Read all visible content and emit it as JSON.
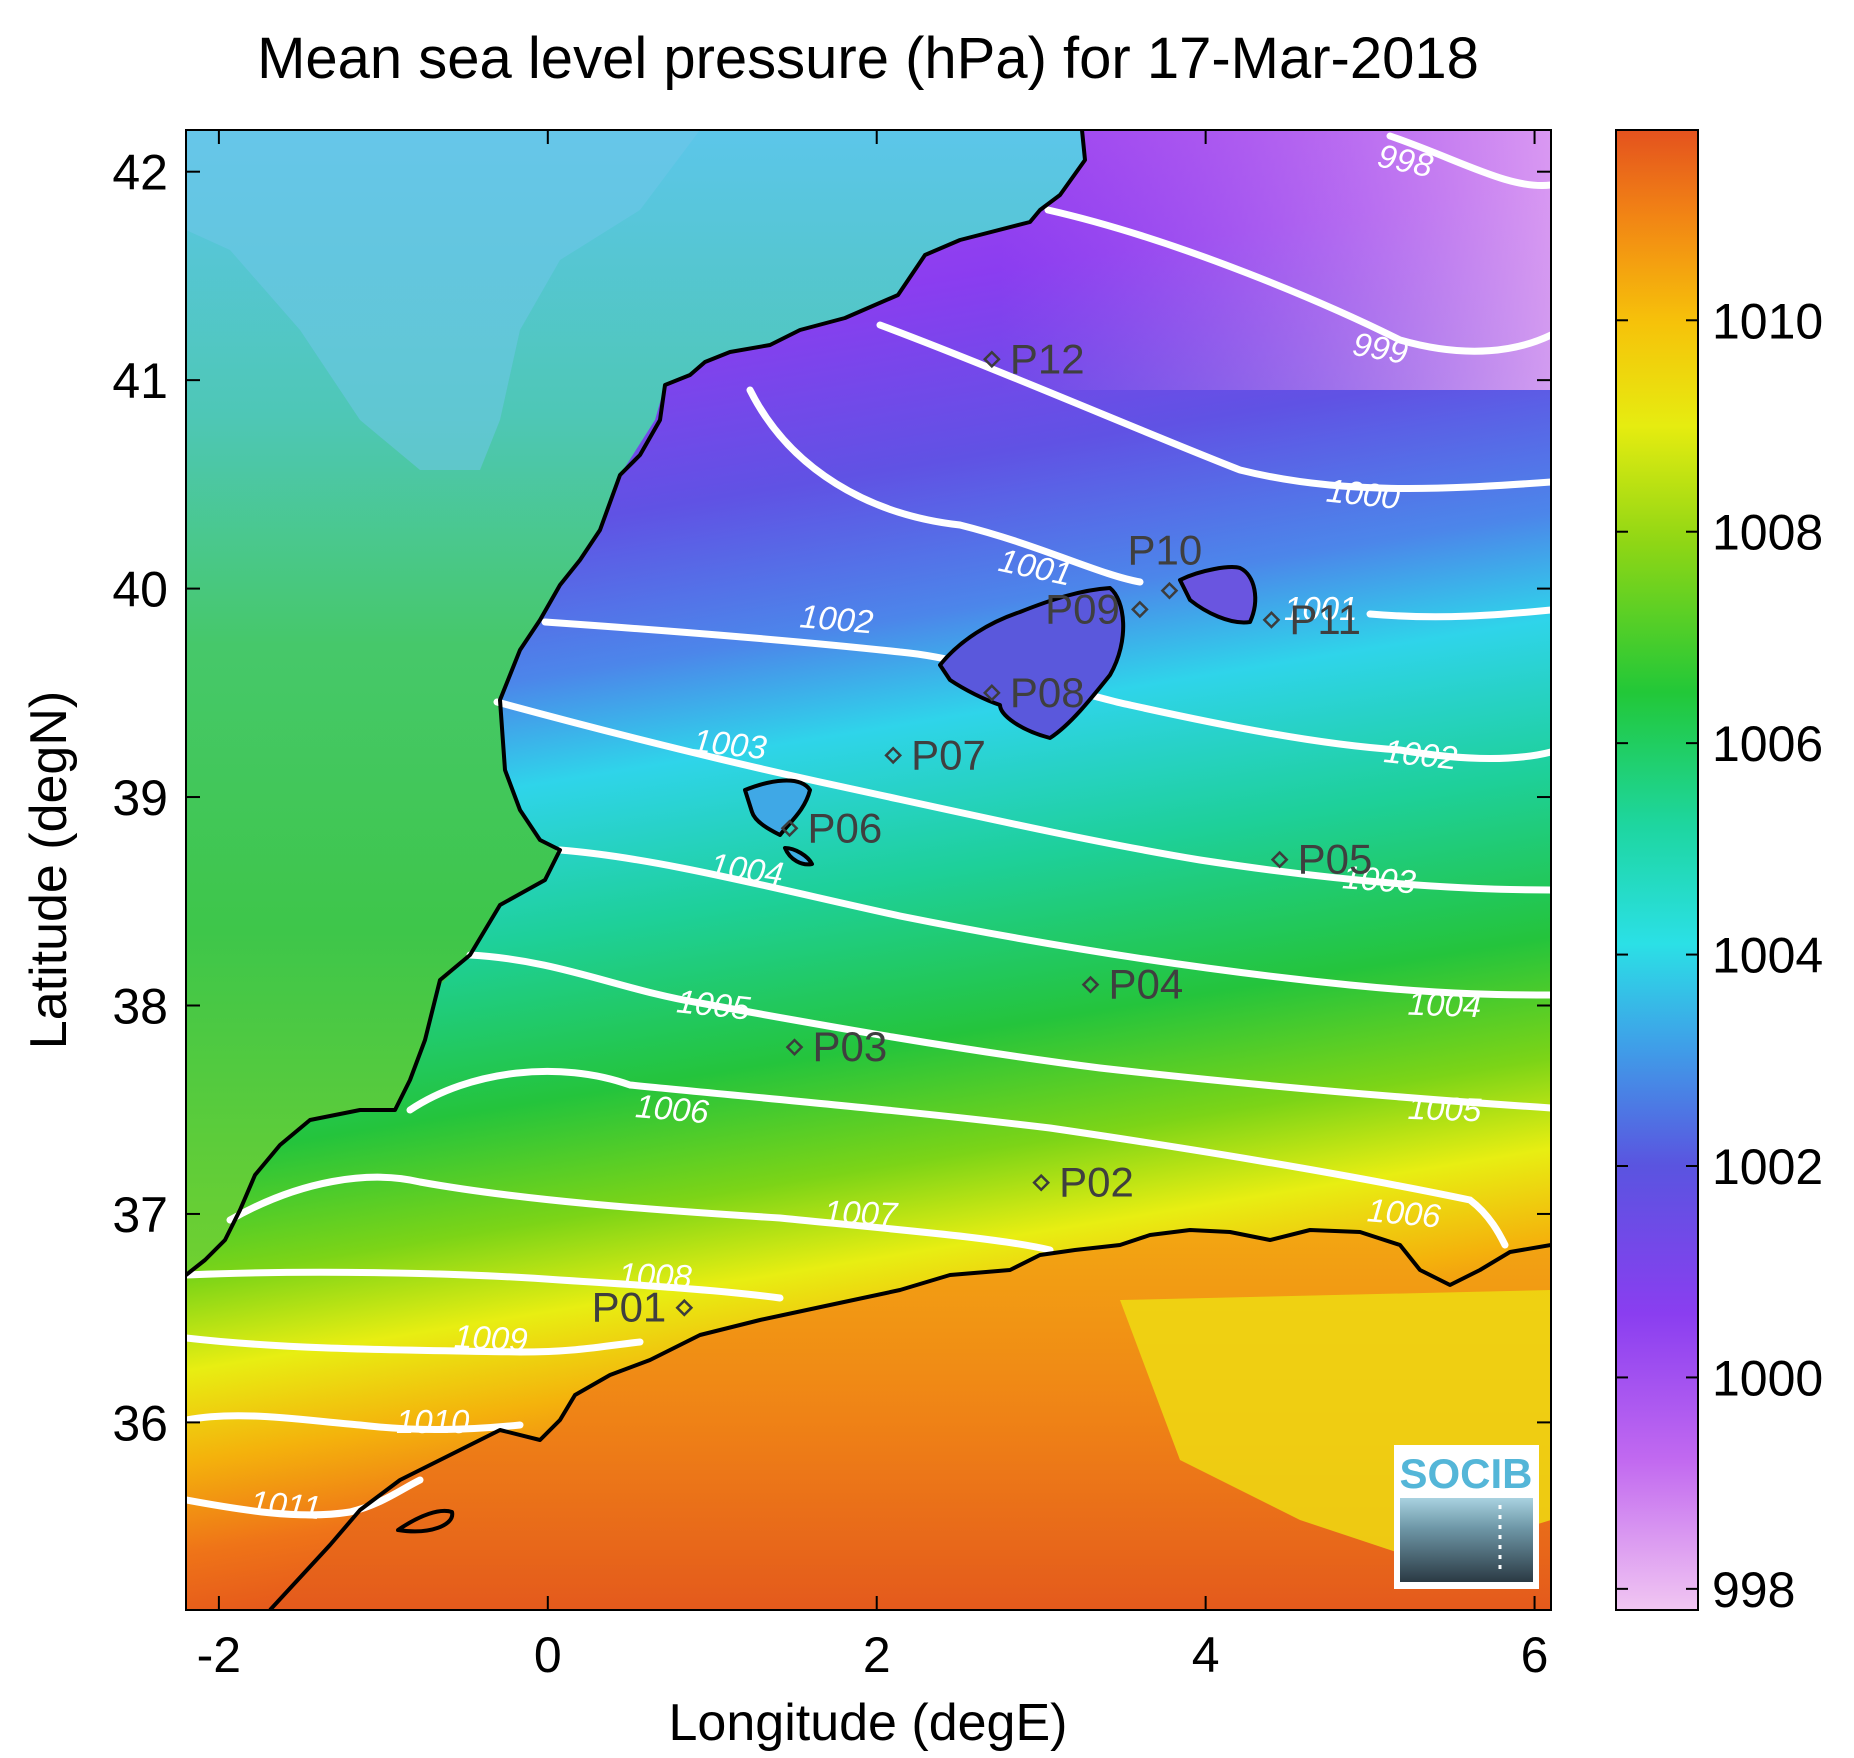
{
  "title": "Mean sea level pressure (hPa) for 17-Mar-2018",
  "xlabel": "Longitude (degE)",
  "ylabel": "Latitude (degN)",
  "logo": "SOCIB",
  "colors": {
    "contour": "#ffffff",
    "coastline": "#000000",
    "station": "#3c3c3c"
  },
  "chart_data": {
    "type": "heatmap",
    "variable": "Mean sea level pressure",
    "units": "hPa",
    "date": "17-Mar-2018",
    "xlim": [
      -2.2,
      6.1
    ],
    "ylim": [
      35.1,
      42.2
    ],
    "xticks": [
      -2,
      0,
      2,
      4,
      6
    ],
    "yticks": [
      36,
      37,
      38,
      39,
      40,
      41,
      42
    ],
    "colorbar": {
      "range": [
        997.8,
        1011.8
      ],
      "ticks": [
        998,
        1000,
        1002,
        1004,
        1006,
        1008,
        1010
      ],
      "colormap": [
        "#f1c6f2",
        "#c26af0",
        "#8a3ef0",
        "#5a54e0",
        "#3f9ee8",
        "#2be0e6",
        "#1ed6a0",
        "#22c838",
        "#8ed615",
        "#e6ec10",
        "#f6c20a",
        "#f28614",
        "#e4521e"
      ]
    },
    "contours": [
      998,
      999,
      1000,
      1001,
      1002,
      1003,
      1004,
      1005,
      1006,
      1007,
      1008,
      1009,
      1010,
      1011
    ],
    "stations": [
      {
        "name": "P01",
        "lon": 0.83,
        "lat": 36.55
      },
      {
        "name": "P02",
        "lon": 3.0,
        "lat": 37.15
      },
      {
        "name": "P03",
        "lon": 1.5,
        "lat": 37.8
      },
      {
        "name": "P04",
        "lon": 3.3,
        "lat": 38.1
      },
      {
        "name": "P05",
        "lon": 4.45,
        "lat": 38.7
      },
      {
        "name": "P06",
        "lon": 1.47,
        "lat": 38.85
      },
      {
        "name": "P07",
        "lon": 2.1,
        "lat": 39.2
      },
      {
        "name": "P08",
        "lon": 2.7,
        "lat": 39.5
      },
      {
        "name": "P09",
        "lon": 3.6,
        "lat": 39.9
      },
      {
        "name": "P10",
        "lon": 3.78,
        "lat": 39.99
      },
      {
        "name": "P11",
        "lon": 4.4,
        "lat": 39.85
      },
      {
        "name": "P12",
        "lon": 2.7,
        "lat": 41.1
      }
    ]
  }
}
